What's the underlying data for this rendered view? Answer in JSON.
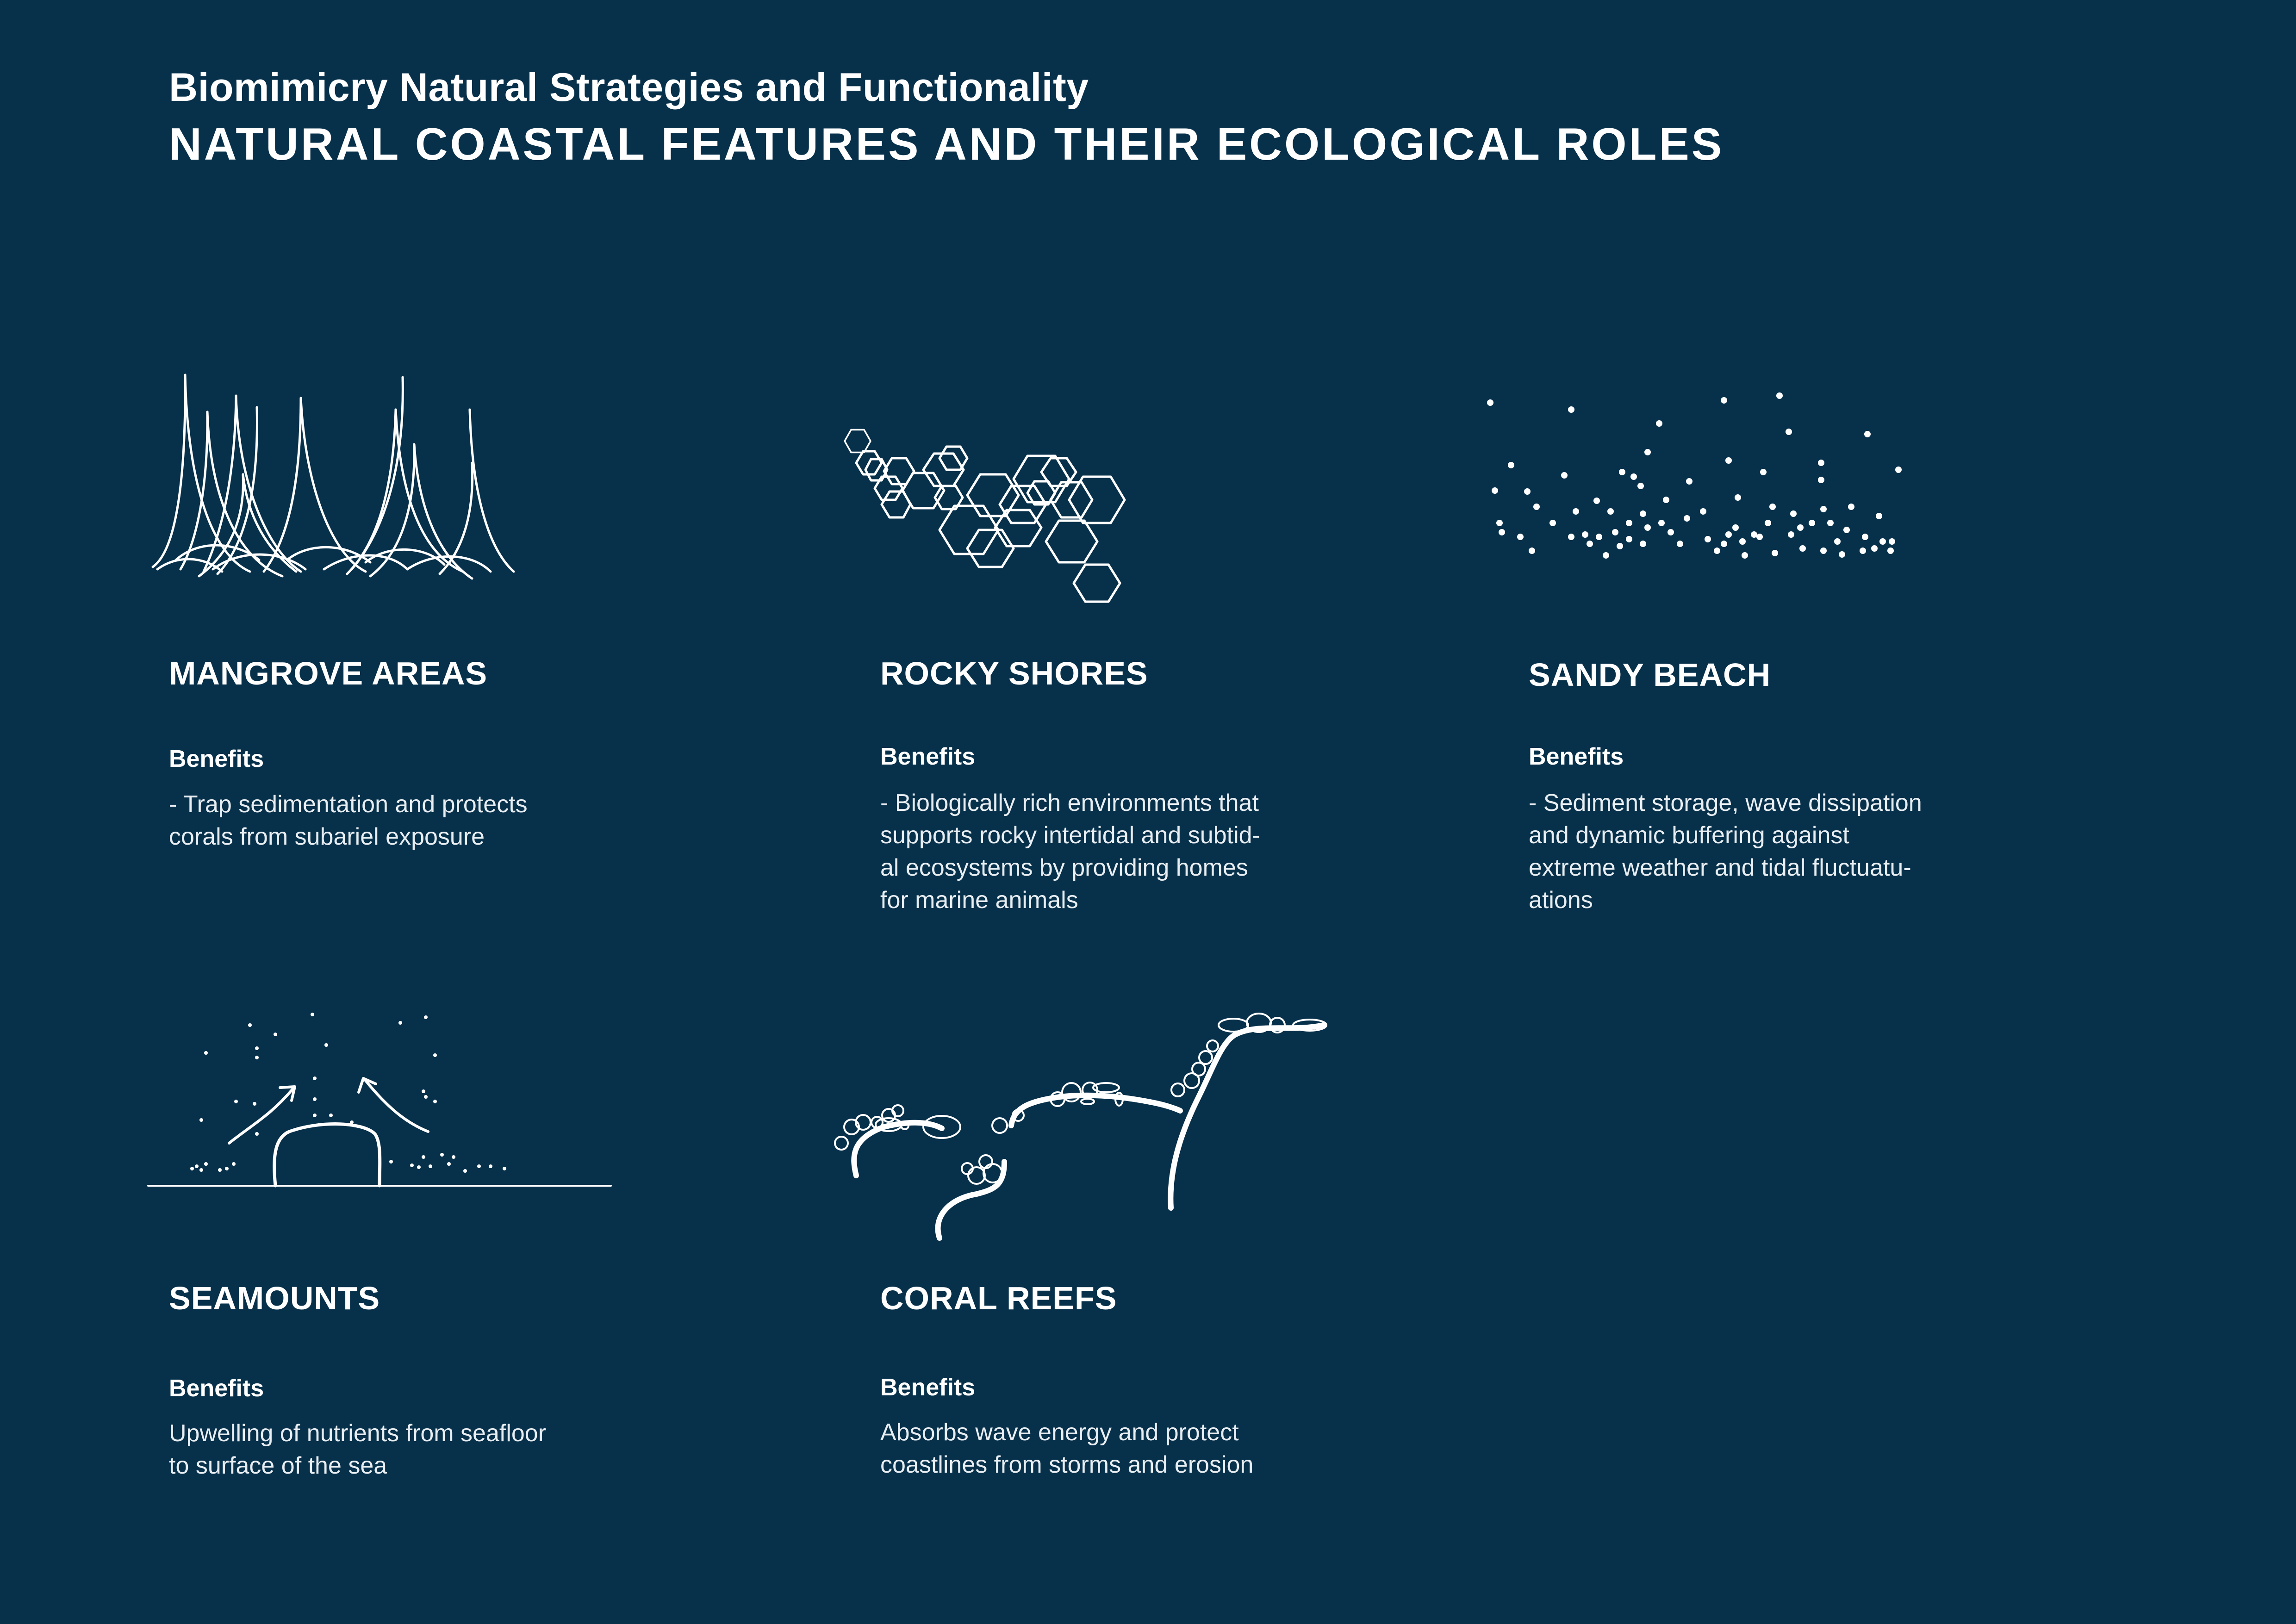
{
  "header": {
    "subtitle": "Biomimicry Natural Strategies and Functionality",
    "title": "NATURAL COASTAL FEATURES AND THEIR ECOLOGICAL ROLES"
  },
  "features": [
    {
      "name": "MANGROVE AREAS",
      "benefits_label": "Benefits",
      "benefits_text": "- Trap sedimentation and protects\ncorals from subariel exposure",
      "icon": "mangrove-roots-icon"
    },
    {
      "name": "ROCKY SHORES",
      "benefits_label": "Benefits",
      "benefits_text": "- Biologically rich environments that\nsupports rocky intertidal and subtid-\nal ecosystems by providing homes\nfor marine animals",
      "icon": "hexagon-rocks-icon"
    },
    {
      "name": "SANDY BEACH",
      "benefits_label": "Benefits",
      "benefits_text": "- Sediment storage, wave dissipation\nand dynamic buffering against\nextreme weather and tidal fluctuatu-\nations",
      "icon": "sand-dots-icon"
    },
    {
      "name": "SEAMOUNTS",
      "benefits_label": "Benefits",
      "benefits_text": "Upwelling of nutrients from seafloor\nto surface of the sea",
      "icon": "seamount-upwelling-icon"
    },
    {
      "name": "CORAL REEFS",
      "benefits_label": "Benefits",
      "benefits_text": "Absorbs wave energy and protect\ncoastlines from storms and erosion",
      "icon": "coral-branches-icon"
    }
  ],
  "colors": {
    "background": "#07304a",
    "foreground": "#ffffff"
  }
}
